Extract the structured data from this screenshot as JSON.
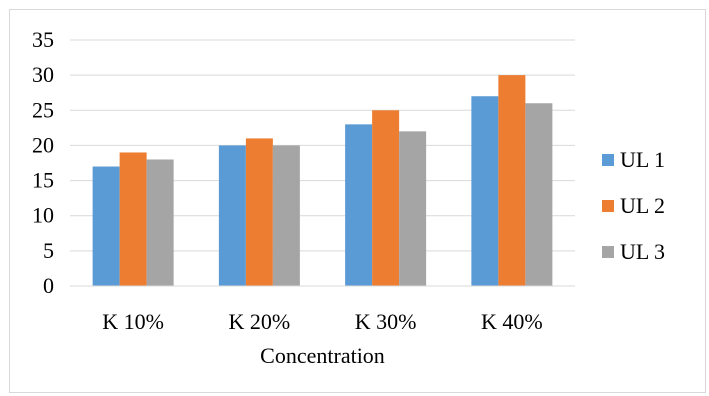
{
  "chart_data": {
    "type": "bar",
    "categories": [
      "K 10%",
      "K 20%",
      "K 30%",
      "K 40%"
    ],
    "series": [
      {
        "name": "UL 1",
        "values": [
          17,
          20,
          23,
          27
        ],
        "color": "#5b9bd5"
      },
      {
        "name": "UL 2",
        "values": [
          19,
          21,
          25,
          30
        ],
        "color": "#ed7d31"
      },
      {
        "name": "UL 3",
        "values": [
          18,
          20,
          22,
          26
        ],
        "color": "#a5a5a5"
      }
    ],
    "title": "",
    "xlabel": "Concentration",
    "ylabel": "",
    "ylim": [
      0,
      35
    ],
    "yticks": [
      0,
      5,
      10,
      15,
      20,
      25,
      30,
      35
    ],
    "grid": true,
    "gridline_color": "#d9d9d9",
    "legend_position": "right"
  }
}
